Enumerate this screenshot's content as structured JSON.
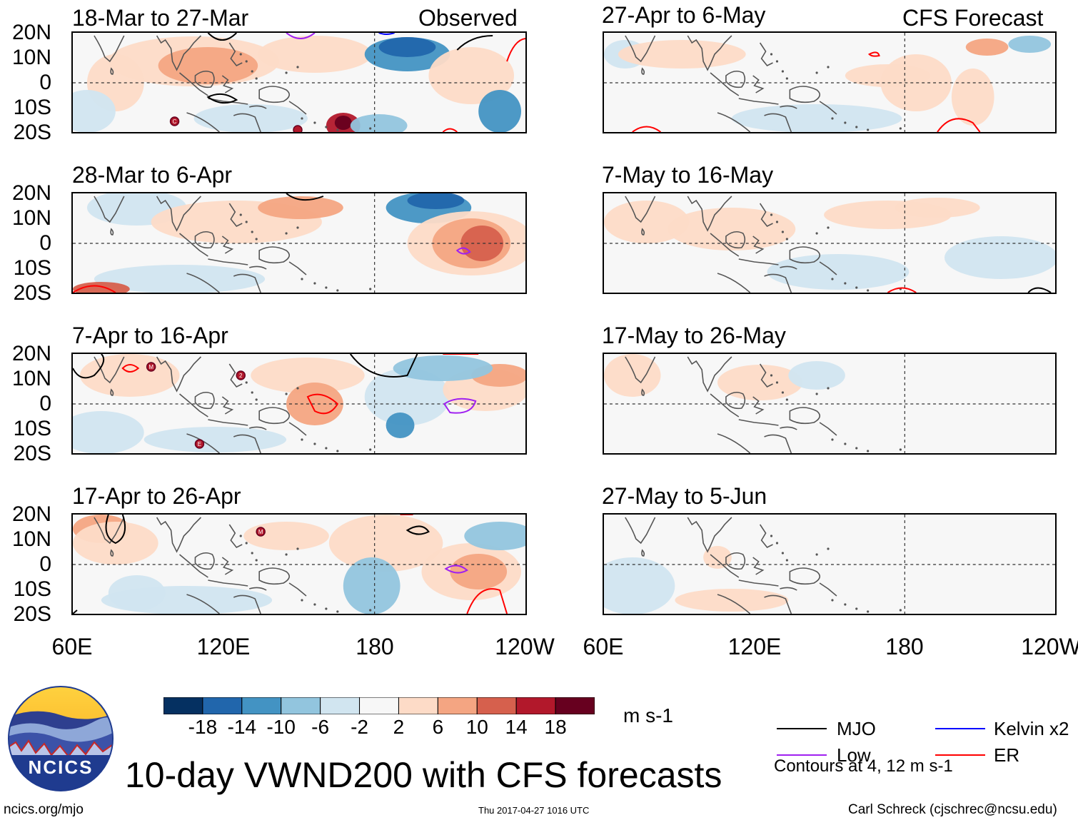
{
  "headers": {
    "observed": "Observed",
    "forecast": "CFS Forecast"
  },
  "lat_labels": [
    "20N",
    "10N",
    "0",
    "10S",
    "20S"
  ],
  "lon_labels": [
    "60E",
    "120E",
    "180",
    "120W"
  ],
  "observed_panels": [
    {
      "period": "18-Mar to 27-Mar",
      "contours": [
        "MJO",
        "Low",
        "Kelvin x2",
        "ER"
      ],
      "storm_markers": [
        "C",
        "?"
      ]
    },
    {
      "period": "28-Mar to 6-Apr",
      "contours": [
        "MJO",
        "Low",
        "ER"
      ],
      "storm_markers": []
    },
    {
      "period": "7-Apr to 16-Apr",
      "contours": [
        "MJO",
        "Low",
        "ER"
      ],
      "storm_markers": [
        "M",
        "2",
        "E"
      ]
    },
    {
      "period": "17-Apr to 26-Apr",
      "contours": [
        "MJO",
        "Low",
        "ER"
      ],
      "storm_markers": [
        "M"
      ]
    }
  ],
  "forecast_panels": [
    {
      "period": "27-Apr to 6-May",
      "contours": [
        "ER"
      ]
    },
    {
      "period": "7-May to 16-May",
      "contours": [
        "MJO",
        "ER"
      ]
    },
    {
      "period": "17-May to 26-May",
      "contours": []
    },
    {
      "period": "27-May to 5-Jun",
      "contours": []
    }
  ],
  "colorbar": {
    "colors": [
      "#053061",
      "#2166ac",
      "#4393c3",
      "#92c5de",
      "#d1e5f0",
      "#f7f7f7",
      "#fddbc7",
      "#f4a582",
      "#d6604d",
      "#b2182b",
      "#67001f"
    ],
    "labels": [
      "-18",
      "-14",
      "-10",
      "-6",
      "-2",
      "2",
      "6",
      "10",
      "14",
      "18"
    ],
    "units": "m s-1"
  },
  "legend": {
    "items": [
      {
        "label": "MJO",
        "color": "#000000"
      },
      {
        "label": "Kelvin x2",
        "color": "#0000ff"
      },
      {
        "label": "Low",
        "color": "#a020f0"
      },
      {
        "label": "ER",
        "color": "#ff0000"
      }
    ],
    "note": "Contours at 4, 12 m s-1"
  },
  "logo_text": "NCICS",
  "title": "10-day VWND200 with CFS forecasts",
  "footer": {
    "url": "ncics.org/mjo",
    "timestamp": "Thu 2017-04-27 1016 UTC",
    "credit": "Carl Schreck (cjschrec@ncsu.edu)"
  },
  "colors": {
    "coast": "#555555",
    "equator": "#333333"
  }
}
